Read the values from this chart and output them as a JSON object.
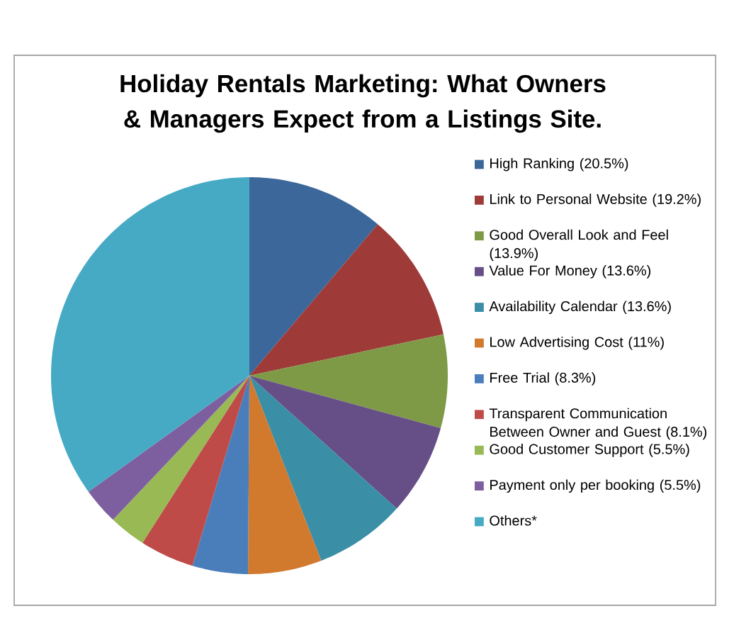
{
  "chart_data": {
    "type": "pie",
    "title": "Holiday Rentals Marketing: What Owners & Managers Expect from a Listings Site.",
    "categories": [
      "High Ranking (20.5%)",
      "Link to Personal Website (19.2%)",
      "Good Overall Look and Feel (13.9%)",
      "Value For Money (13.6%)",
      "Availability Calendar (13.6%)",
      "Low Advertising Cost (11%)",
      "Free Trial (8.3%)",
      "Transparent Communication Between Owner and Guest (8.1%)",
      "Good Customer Support (5.5%)",
      "Payment only per booking (5.5%)",
      "Others*"
    ],
    "values": [
      20.5,
      19.2,
      13.9,
      13.6,
      13.6,
      11,
      8.3,
      8.1,
      5.5,
      5.5,
      64
    ],
    "colors": [
      "#3c679a",
      "#9e3b38",
      "#7e9a47",
      "#664e86",
      "#3a8ea6",
      "#d1792d",
      "#4a7ebb",
      "#be4b48",
      "#98b954",
      "#7d5fa0",
      "#46aac5"
    ],
    "legend": "right"
  }
}
